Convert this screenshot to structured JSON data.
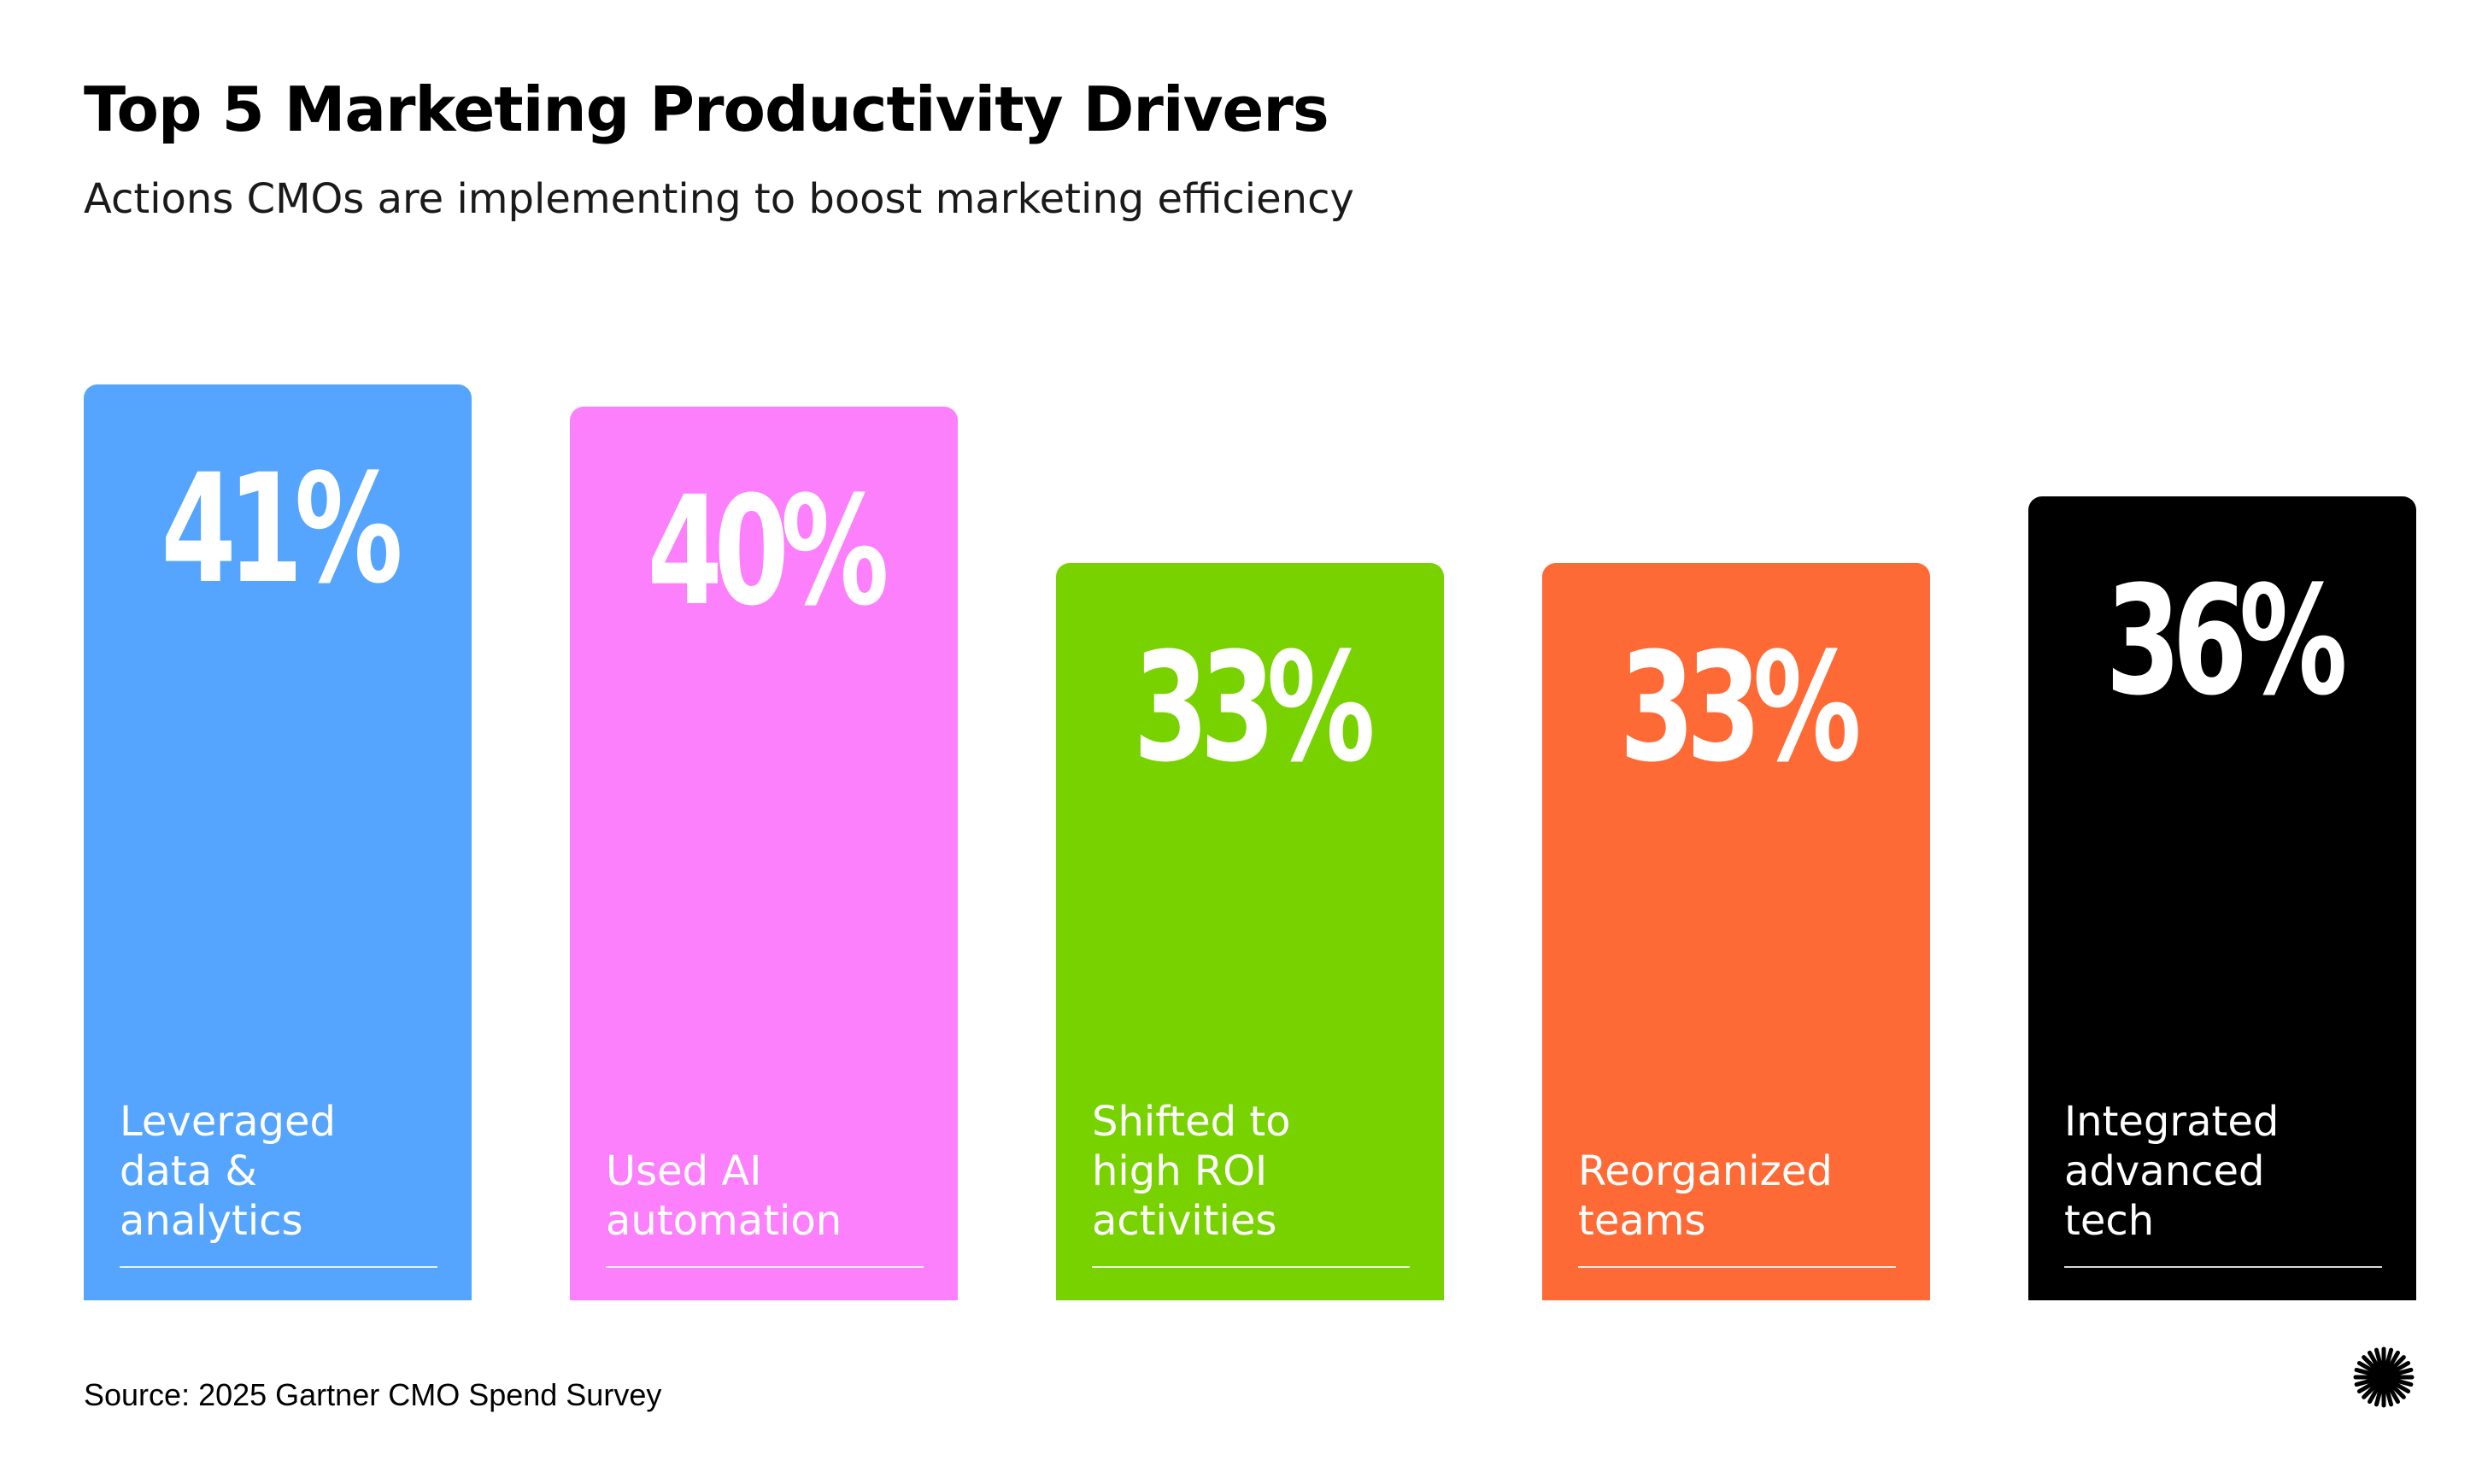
{
  "header": {
    "title": "Top 5 Marketing Productivity Drivers",
    "subtitle": "Actions CMOs are implementing to boost marketing efficiency"
  },
  "chart_data": {
    "type": "bar",
    "title": "",
    "xlabel": "",
    "ylabel": "",
    "ylim": [
      0,
      41
    ],
    "grid": false,
    "legend": "none",
    "unit": "%",
    "categories": [
      "Leveraged\ndata &\nanalytics",
      "Used AI\nautomation",
      "Shifted to\nhigh ROI\nactivities",
      "Reorganized\nteams",
      "Integrated\nadvanced\ntech"
    ],
    "values": [
      41,
      40,
      33,
      33,
      36
    ],
    "value_labels": [
      "41%",
      "40%",
      "33%",
      "33%",
      "36%"
    ],
    "colors": [
      "#55a4fd",
      "#fc80fc",
      "#78d200",
      "#fe6a35",
      "#000000"
    ]
  },
  "footer": {
    "source": "Source: 2025 Gartner CMO Spend Survey",
    "logo_icon": "starburst-icon"
  }
}
